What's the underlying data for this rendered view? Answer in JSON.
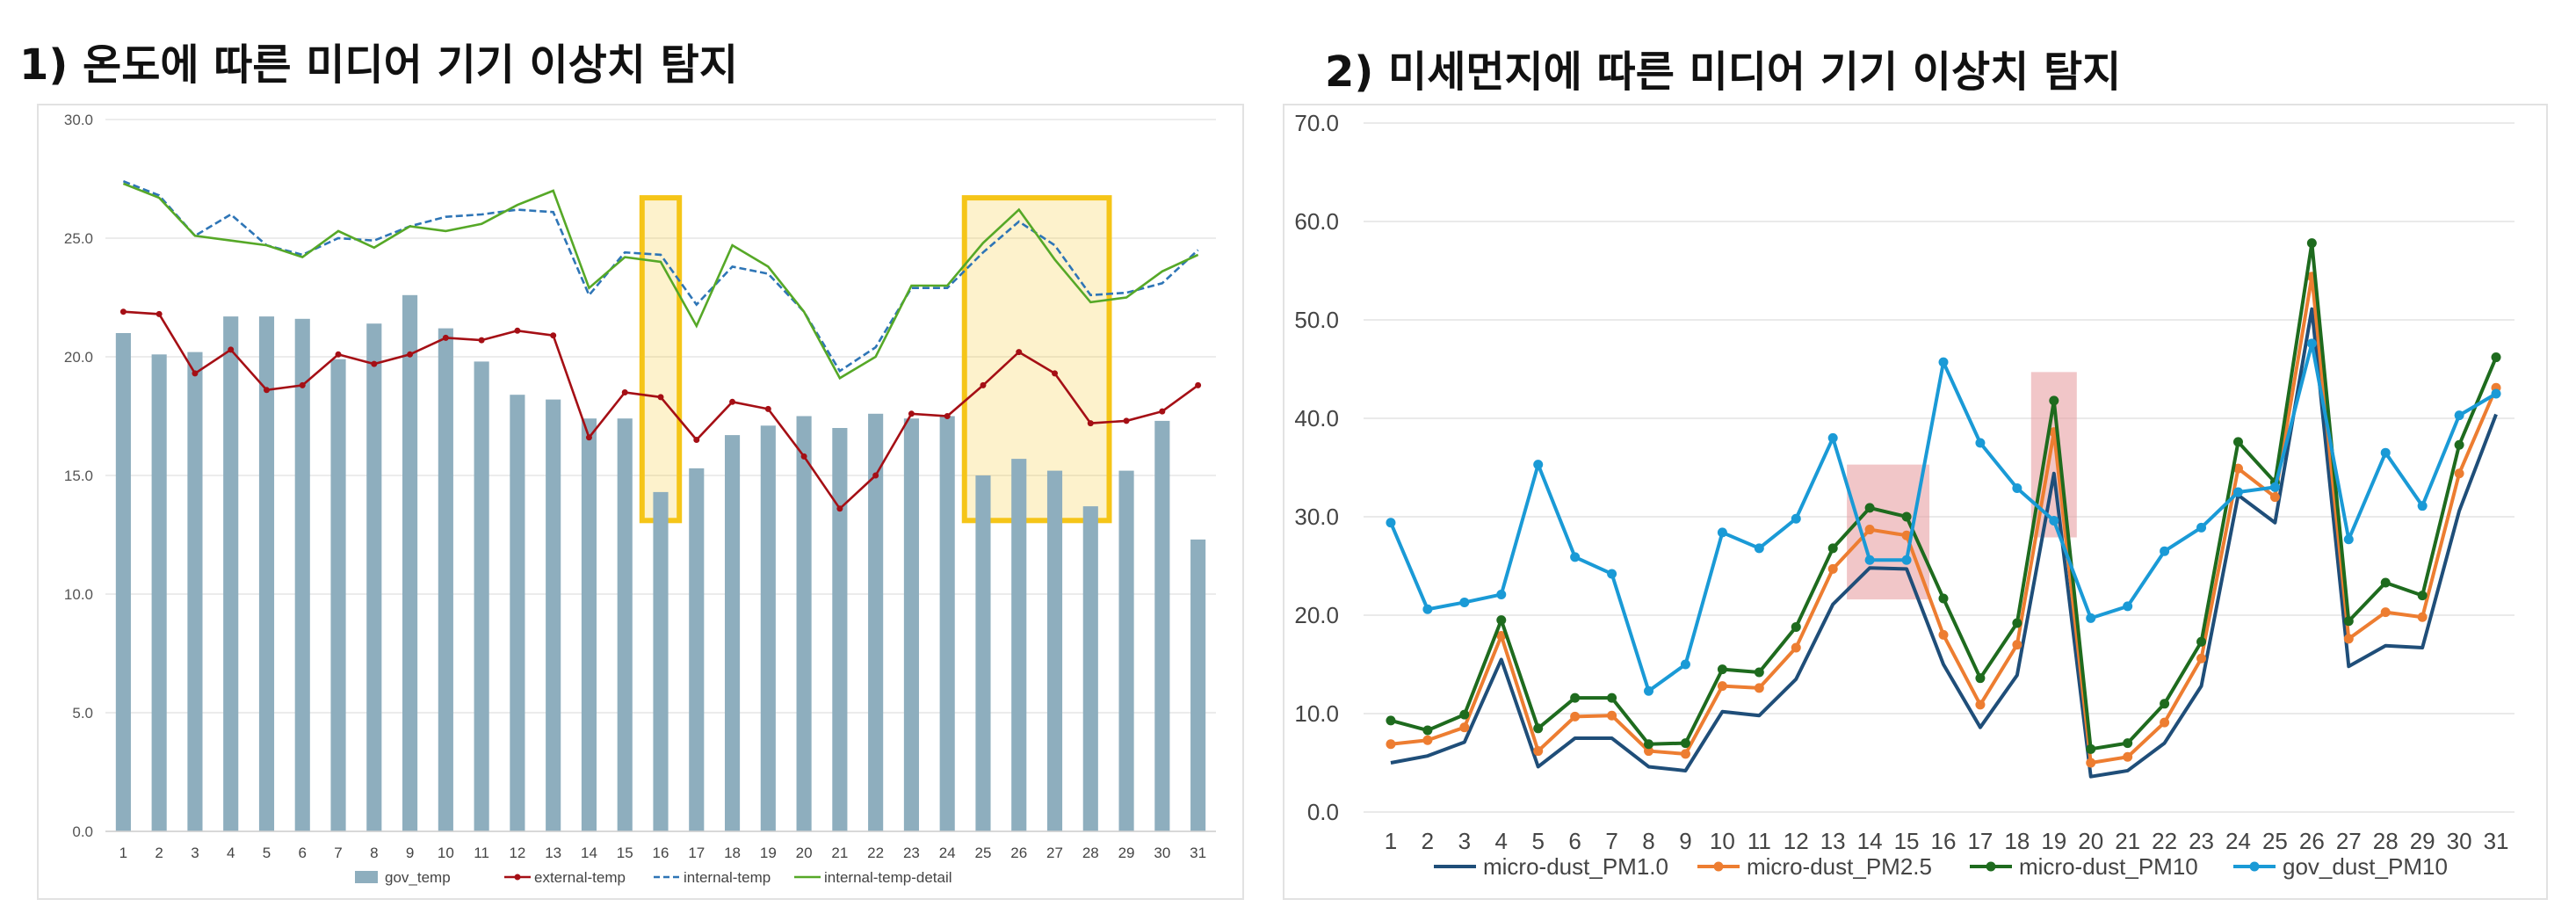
{
  "titles": {
    "left": "1) 온도에 따른 미디어 기기 이상치 탐지",
    "right": "2) 미세먼지에 따른 미디어 기기 이상치 탐지"
  },
  "chart_data": [
    {
      "type": "bar",
      "title": "1) 온도에 따른 미디어 기기 이상치 탐지",
      "categories": [
        "1",
        "2",
        "3",
        "4",
        "5",
        "6",
        "7",
        "8",
        "9",
        "10",
        "11",
        "12",
        "13",
        "14",
        "15",
        "16",
        "17",
        "18",
        "19",
        "20",
        "21",
        "22",
        "23",
        "24",
        "25",
        "26",
        "27",
        "28",
        "29",
        "30",
        "31"
      ],
      "ylim": [
        0,
        30
      ],
      "yticks": [
        "0.0",
        "5.0",
        "10.0",
        "15.0",
        "20.0",
        "25.0",
        "30.0"
      ],
      "grid": true,
      "legend_position": "bottom",
      "series": [
        {
          "name": "gov_temp",
          "kind": "bar",
          "color": "#8eaebe",
          "values": [
            21.0,
            20.1,
            20.2,
            21.7,
            21.7,
            21.6,
            19.9,
            21.4,
            22.6,
            21.2,
            19.8,
            18.4,
            18.2,
            17.4,
            17.4,
            14.3,
            15.3,
            16.7,
            17.1,
            17.5,
            17.0,
            17.6,
            17.4,
            17.5,
            15.0,
            15.7,
            15.2,
            13.7,
            15.2,
            17.3,
            12.3
          ]
        },
        {
          "name": "external-temp",
          "kind": "line-marker",
          "color": "#a50f15",
          "values": [
            21.9,
            21.8,
            19.3,
            20.3,
            18.6,
            18.8,
            20.1,
            19.7,
            20.1,
            20.8,
            20.7,
            21.1,
            20.9,
            16.6,
            18.5,
            18.3,
            16.5,
            18.1,
            17.8,
            15.8,
            13.6,
            15.0,
            17.6,
            17.5,
            18.8,
            20.2,
            19.3,
            17.2,
            17.3,
            17.7,
            18.8
          ]
        },
        {
          "name": "internal-temp",
          "kind": "dashed",
          "color": "#2e75b6",
          "values": [
            27.4,
            26.8,
            25.1,
            26.0,
            24.7,
            24.3,
            25.0,
            24.9,
            25.5,
            25.9,
            26.0,
            26.2,
            26.1,
            22.6,
            24.4,
            24.3,
            22.2,
            23.8,
            23.5,
            21.9,
            19.4,
            20.4,
            22.9,
            22.9,
            24.4,
            25.7,
            24.7,
            22.6,
            22.7,
            23.1,
            24.5
          ]
        },
        {
          "name": "internal-temp-detail",
          "kind": "line",
          "color": "#56a827",
          "values": [
            27.3,
            26.7,
            25.1,
            24.9,
            24.7,
            24.2,
            25.3,
            24.6,
            25.5,
            25.3,
            25.6,
            26.4,
            27.0,
            22.9,
            24.2,
            24.0,
            21.3,
            24.7,
            23.8,
            21.9,
            19.1,
            20.0,
            23.0,
            23.0,
            24.8,
            26.2,
            24.1,
            22.3,
            22.5,
            23.6,
            24.3
          ]
        }
      ],
      "highlights": [
        {
          "from_day": 16,
          "to_day": 16,
          "y_from": 13.1,
          "y_to": 26.7,
          "color": "#f5c518"
        },
        {
          "from_day": 25,
          "to_day": 28,
          "y_from": 13.1,
          "y_to": 26.7,
          "color": "#f5c518"
        }
      ]
    },
    {
      "type": "line",
      "title": "2) 미세먼지에 따른 미디어 기기 이상치 탐지",
      "categories": [
        "1",
        "2",
        "3",
        "4",
        "5",
        "6",
        "7",
        "8",
        "9",
        "10",
        "11",
        "12",
        "13",
        "14",
        "15",
        "16",
        "17",
        "18",
        "19",
        "20",
        "21",
        "22",
        "23",
        "24",
        "25",
        "26",
        "27",
        "28",
        "29",
        "30",
        "31"
      ],
      "ylim": [
        0,
        70
      ],
      "yticks": [
        "0.0",
        "10.0",
        "20.0",
        "30.0",
        "40.0",
        "50.0",
        "60.0",
        "70.0"
      ],
      "grid": true,
      "legend_position": "bottom",
      "series": [
        {
          "name": "micro-dust_PM1.0",
          "marker": false,
          "color": "#1f4e79",
          "values": [
            5.0,
            5.7,
            7.1,
            15.5,
            4.6,
            7.5,
            7.5,
            4.6,
            4.2,
            10.2,
            9.8,
            13.5,
            21.1,
            24.8,
            24.7,
            15.0,
            8.6,
            13.9,
            34.4,
            3.6,
            4.2,
            7.0,
            12.8,
            32.2,
            29.4,
            51.1,
            14.8,
            16.9,
            16.7,
            30.6,
            40.4
          ]
        },
        {
          "name": "micro-dust_PM2.5",
          "marker": true,
          "color": "#ed7d31",
          "values": [
            6.9,
            7.3,
            8.6,
            17.9,
            6.2,
            9.7,
            9.8,
            6.2,
            5.9,
            12.8,
            12.6,
            16.7,
            24.7,
            28.7,
            28.1,
            18.0,
            10.9,
            17.0,
            38.6,
            5.0,
            5.6,
            9.1,
            15.6,
            34.9,
            32.0,
            54.4,
            17.6,
            20.3,
            19.8,
            34.4,
            43.1
          ]
        },
        {
          "name": "micro-dust_PM10",
          "marker": true,
          "color": "#1e6b1e",
          "values": [
            9.3,
            8.3,
            9.9,
            19.5,
            8.5,
            11.6,
            11.6,
            6.9,
            7.0,
            14.5,
            14.2,
            18.8,
            26.8,
            30.9,
            30.0,
            21.7,
            13.6,
            19.2,
            41.8,
            6.4,
            7.0,
            11.0,
            17.3,
            37.6,
            33.5,
            57.8,
            19.4,
            23.3,
            22.0,
            37.3,
            46.2
          ]
        },
        {
          "name": "gov_dust_PM10",
          "marker": true,
          "color": "#1a9ad6",
          "values": [
            29.4,
            20.6,
            21.3,
            22.1,
            35.3,
            25.9,
            24.2,
            12.3,
            15.0,
            28.4,
            26.8,
            29.8,
            38.0,
            25.6,
            25.6,
            45.7,
            37.5,
            32.9,
            29.6,
            19.7,
            20.9,
            26.5,
            28.9,
            32.5,
            33.0,
            47.6,
            27.7,
            36.5,
            31.1,
            40.3,
            42.5
          ]
        }
      ],
      "highlights": [
        {
          "from_day": 14,
          "to_day": 15,
          "y_from": 21.6,
          "y_to": 35.3,
          "color": "#e8a0a4"
        },
        {
          "from_day": 19,
          "to_day": 19,
          "y_from": 27.9,
          "y_to": 44.7,
          "color": "#e8a0a4"
        }
      ]
    }
  ]
}
